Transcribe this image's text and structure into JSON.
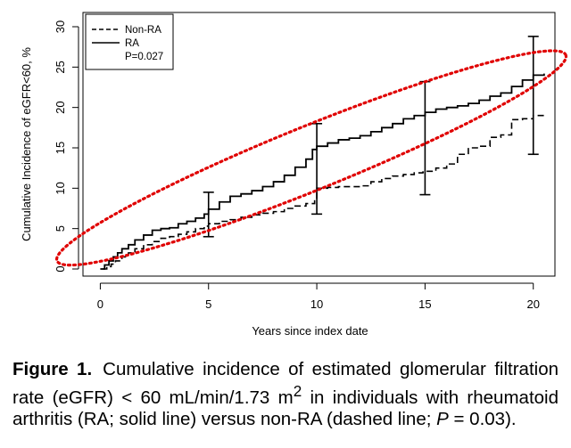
{
  "chart_data": {
    "type": "line",
    "xlabel": "Years since index date",
    "ylabel": "Cumulative Incidence of eGFR<60, %",
    "xlim": [
      -0.8,
      21
    ],
    "ylim": [
      0,
      30
    ],
    "x_ticks": [
      0,
      5,
      10,
      15,
      20
    ],
    "y_ticks": [
      0,
      5,
      10,
      15,
      20,
      25,
      30
    ],
    "grid": false,
    "legend_position": "top-left",
    "annotation": "P=0.027",
    "series": [
      {
        "name": "Non-RA",
        "line_style": "dashed",
        "x": [
          0.1,
          0.3,
          0.5,
          0.7,
          1.0,
          1.3,
          1.6,
          2.0,
          2.4,
          2.8,
          3.2,
          3.6,
          4.0,
          4.4,
          4.8,
          5.0,
          5.5,
          6.0,
          6.5,
          7.0,
          7.5,
          8.0,
          8.5,
          9.0,
          9.5,
          9.9,
          10.0,
          10.5,
          11.0,
          11.5,
          12.0,
          12.5,
          13.0,
          13.5,
          14.0,
          14.5,
          14.9,
          15.0,
          15.5,
          16.0,
          16.5,
          17.0,
          17.5,
          18.0,
          18.5,
          19.0,
          19.5,
          20.0,
          20.5
        ],
        "values": [
          0.0,
          0.3,
          0.6,
          1.0,
          1.5,
          2.0,
          2.5,
          3.0,
          3.4,
          3.8,
          4.0,
          4.3,
          4.6,
          5.0,
          5.3,
          5.6,
          5.9,
          6.1,
          6.4,
          6.7,
          6.9,
          7.1,
          7.5,
          7.8,
          8.1,
          8.6,
          10.0,
          10.1,
          10.2,
          10.2,
          10.3,
          10.8,
          11.2,
          11.5,
          11.7,
          11.9,
          12.0,
          12.1,
          12.5,
          13.0,
          14.2,
          15.0,
          15.2,
          16.3,
          16.6,
          18.5,
          18.6,
          19.0,
          19.3
        ]
      },
      {
        "name": "RA",
        "line_style": "solid",
        "x": [
          0.0,
          0.2,
          0.4,
          0.6,
          0.8,
          1.0,
          1.3,
          1.6,
          2.0,
          2.4,
          2.8,
          3.2,
          3.6,
          4.0,
          4.4,
          4.8,
          5.0,
          5.5,
          6.0,
          6.5,
          7.0,
          7.5,
          8.0,
          8.5,
          9.0,
          9.5,
          9.8,
          10.0,
          10.5,
          11.0,
          11.5,
          12.0,
          12.5,
          13.0,
          13.5,
          14.0,
          14.5,
          15.0,
          15.5,
          16.0,
          16.5,
          17.0,
          17.5,
          18.0,
          18.5,
          19.0,
          19.5,
          20.0,
          20.5
        ],
        "values": [
          0.0,
          0.5,
          1.0,
          1.5,
          2.0,
          2.5,
          3.0,
          3.6,
          4.2,
          4.8,
          5.0,
          5.1,
          5.6,
          5.9,
          6.3,
          6.8,
          7.4,
          8.3,
          9.0,
          9.3,
          9.7,
          10.2,
          10.8,
          11.6,
          12.6,
          13.6,
          14.8,
          15.2,
          15.6,
          16.0,
          16.2,
          16.5,
          17.0,
          17.5,
          18.0,
          18.6,
          19.0,
          19.4,
          19.8,
          20.0,
          20.2,
          20.5,
          20.9,
          21.4,
          21.8,
          22.6,
          23.4,
          24.0,
          24.2
        ]
      }
    ],
    "error_bars": [
      {
        "x": 5,
        "low": 4.0,
        "high": 9.5
      },
      {
        "x": 10,
        "low": 6.8,
        "high": 18.0
      },
      {
        "x": 15,
        "low": 9.2,
        "high": 23.2
      },
      {
        "x": 20,
        "low": 14.2,
        "high": 28.8
      }
    ],
    "highlight_ellipse": {
      "x_start": -2.0,
      "y_start": 1.0,
      "x_end": 21.5,
      "y_end": 26.5,
      "color": "#e00000"
    }
  },
  "caption": {
    "label": "Figure 1.",
    "part1": "Cumulative incidence of estimated glomerular filtration rate (eGFR) < 60 mL/min/1.73 m",
    "sup": "2",
    "part2": " in individuals with rheumatoid arthritis (RA; solid line) versus non-RA (dashed line; ",
    "p_symbol": "P",
    "part3": " = 0.03)."
  }
}
